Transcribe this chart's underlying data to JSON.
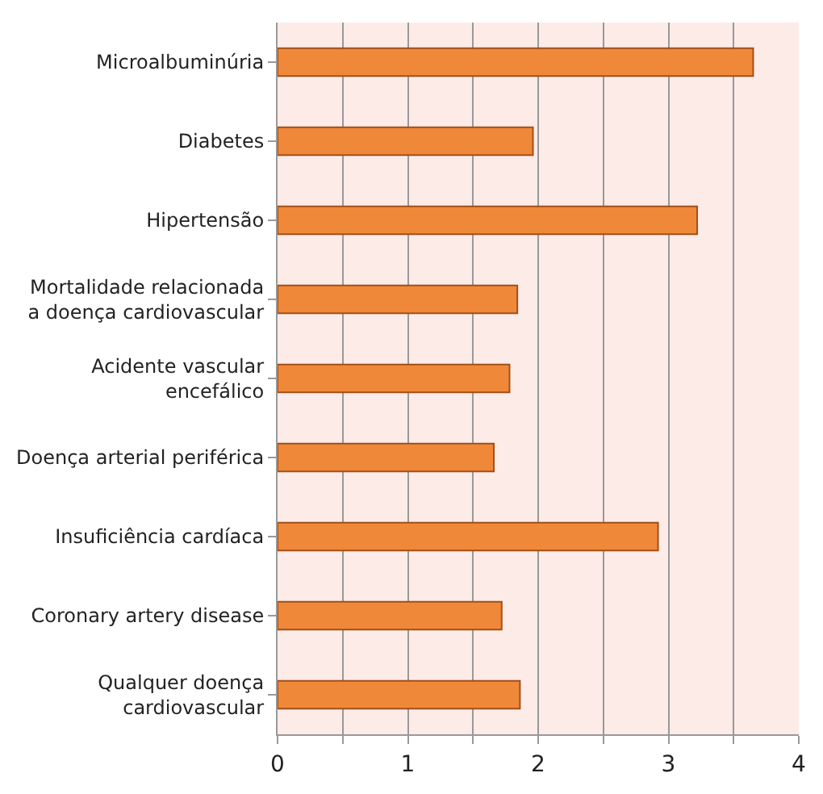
{
  "chart_data": {
    "type": "bar",
    "orientation": "horizontal",
    "categories": [
      "Microalbuminúria",
      "Diabetes",
      "Hipertensão",
      "Mortalidade relacionada\na doença cardiovascular",
      "Acidente vascular\nencefálico",
      "Doença arterial periférica",
      "Insuficiência cardíaca",
      "Coronary artery disease",
      "Qualquer doença\ncardiovascular"
    ],
    "values": [
      3.65,
      1.96,
      3.22,
      1.84,
      1.78,
      1.66,
      2.92,
      1.72,
      1.86
    ],
    "color": "#f0883a",
    "xlim": [
      0,
      4
    ],
    "xticks": [
      0,
      {
        "value": 0.5,
        "label": null
      },
      1,
      {
        "value": 1.5,
        "label": null
      },
      2,
      {
        "value": 2.5,
        "label": null
      },
      3,
      {
        "value": 3.5,
        "label": null
      },
      4
    ],
    "grid": "x"
  }
}
